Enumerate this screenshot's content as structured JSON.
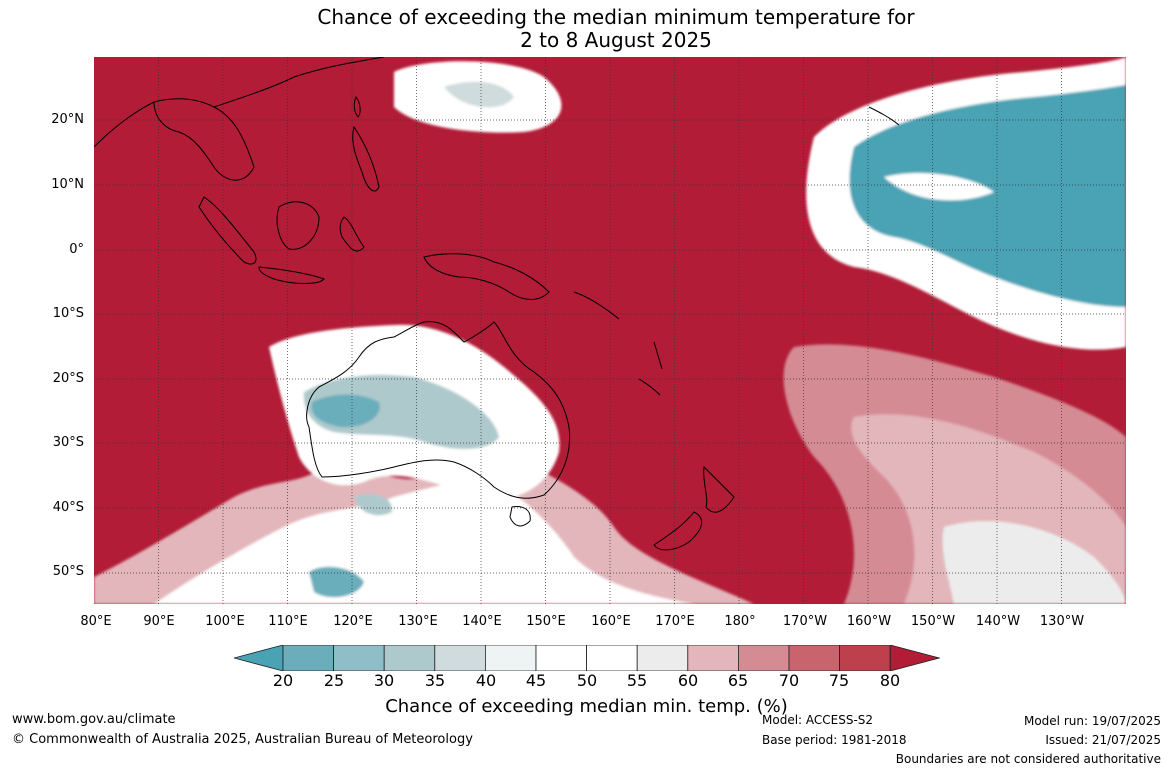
{
  "title_line1": "Chance of exceeding the median minimum temperature for",
  "title_line2": "2 to 8 August 2025",
  "lat_labels": [
    "20°N",
    "10°N",
    "0°",
    "10°S",
    "20°S",
    "30°S",
    "40°S",
    "50°S"
  ],
  "lon_labels": [
    "80°E",
    "90°E",
    "100°E",
    "110°E",
    "120°E",
    "130°E",
    "140°E",
    "150°E",
    "160°E",
    "170°E",
    "180°",
    "170°W",
    "160°W",
    "150°W",
    "140°W",
    "130°W"
  ],
  "colorbar": {
    "ticks": [
      "20",
      "25",
      "30",
      "35",
      "40",
      "45",
      "50",
      "55",
      "60",
      "65",
      "70",
      "75",
      "80"
    ],
    "colors": [
      "#4aa3b4",
      "#6badbb",
      "#8fbdc8",
      "#aec9cc",
      "#cfdbdc",
      "#eef3f4",
      "#ffffff",
      "#ffffff",
      "#ececed",
      "#e3b6bb",
      "#d58b94",
      "#c9646f",
      "#be404d",
      "#b21c37"
    ],
    "label": "Chance of exceeding median min. temp. (%)"
  },
  "footer": {
    "website": "www.bom.gov.au/climate",
    "copyright": "© Commonwealth of Australia 2025, Australian Bureau of Meteorology",
    "model": "Model: ACCESS-S2",
    "base_period": "Base period: 1981-2018",
    "model_run": "Model run: 19/07/2025",
    "issued": "Issued: 21/07/2025",
    "disclaimer": "Boundaries are not considered authoritative"
  }
}
